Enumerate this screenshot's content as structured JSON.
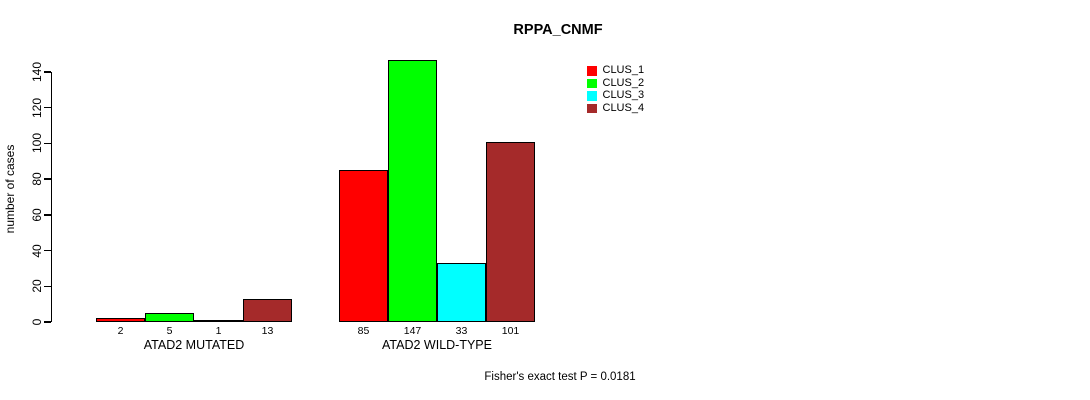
{
  "chart_data": {
    "type": "bar",
    "title": "RPPA_CNMF",
    "ylabel": "number of cases",
    "xlabel": "",
    "categories": [
      "ATAD2 MUTATED",
      "ATAD2 WILD-TYPE"
    ],
    "series": [
      {
        "name": "CLUS_1",
        "color": "#FF0000",
        "values": [
          2,
          85
        ]
      },
      {
        "name": "CLUS_2",
        "color": "#00FF00",
        "values": [
          5,
          147
        ]
      },
      {
        "name": "CLUS_3",
        "color": "#00FFFF",
        "values": [
          1,
          33
        ]
      },
      {
        "name": "CLUS_4",
        "color": "#A52A2A",
        "values": [
          13,
          101
        ]
      }
    ],
    "yticks": [
      0,
      20,
      40,
      60,
      80,
      100,
      120,
      140
    ],
    "ylim": [
      0,
      147
    ],
    "grid": false,
    "bar_value_labels_shown": true,
    "legend": {
      "position": "top-right",
      "entries": [
        "CLUS_1",
        "CLUS_2",
        "CLUS_3",
        "CLUS_4"
      ]
    },
    "annotation": "Fisher's exact test P = 0.0181"
  }
}
